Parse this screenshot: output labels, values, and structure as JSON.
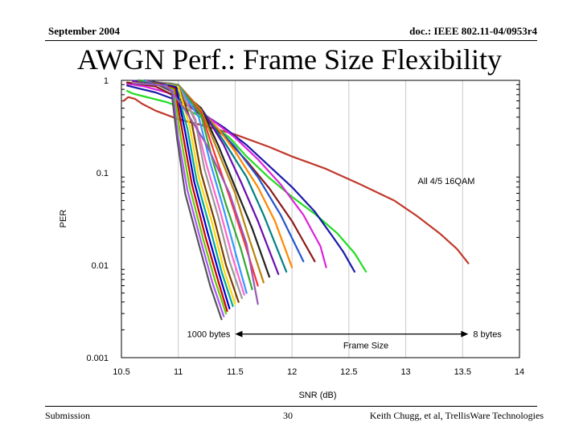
{
  "header": {
    "date": "September 2004",
    "doc_id": "doc.: IEEE 802.11-04/0953r4"
  },
  "slide_title": "AWGN Perf.: Frame Size Flexibility",
  "footer": {
    "left": "Submission",
    "page": "30",
    "right": "Keith Chugg, et al, TrellisWare Technologies"
  },
  "chart_data": {
    "type": "line",
    "title": "",
    "xlabel": "SNR (dB)",
    "ylabel": "PER",
    "xlim": [
      10.5,
      14
    ],
    "ylim": [
      0.001,
      1
    ],
    "y_scale": "log",
    "x_ticks": [
      "10.5",
      "11",
      "11.5",
      "12",
      "12.5",
      "13",
      "13.5",
      "14"
    ],
    "y_ticks": [
      "1",
      "0.1",
      "0.01",
      "0.001"
    ],
    "grid": "vertical",
    "annotations": {
      "code": "All 4/5 16QAM",
      "left_label": "1000 bytes",
      "right_label": "8 bytes",
      "arrow_label": "Frame Size",
      "arrow_from_x": 11.5,
      "arrow_to_x": 13.55,
      "arrow_y": 0.0018
    },
    "series": [
      {
        "color": "#c0392b",
        "x": [
          10.52,
          10.56,
          10.62,
          10.68,
          10.8,
          11.0,
          11.2,
          11.5,
          11.8,
          12.0,
          12.3,
          12.6,
          12.9,
          13.1,
          13.3,
          13.45,
          13.55
        ],
        "y": [
          0.6,
          0.66,
          0.63,
          0.56,
          0.47,
          0.38,
          0.33,
          0.26,
          0.19,
          0.15,
          0.11,
          0.075,
          0.05,
          0.034,
          0.022,
          0.015,
          0.0105
        ]
      },
      {
        "color": "#22dd22",
        "x": [
          10.55,
          10.6,
          10.7,
          10.9,
          11.1,
          11.2,
          11.3,
          11.45,
          11.6,
          11.8,
          12.0,
          12.2,
          12.4,
          12.55,
          12.65
        ],
        "y": [
          0.77,
          0.72,
          0.67,
          0.58,
          0.47,
          0.4,
          0.33,
          0.24,
          0.15,
          0.088,
          0.055,
          0.036,
          0.022,
          0.0135,
          0.0085
        ]
      },
      {
        "color": "#1a1aaa",
        "x": [
          10.55,
          10.65,
          10.8,
          11.0,
          11.2,
          11.4,
          11.6,
          11.8,
          12.0,
          12.2,
          12.35,
          12.45,
          12.55
        ],
        "y": [
          0.88,
          0.82,
          0.74,
          0.6,
          0.45,
          0.31,
          0.2,
          0.118,
          0.07,
          0.038,
          0.021,
          0.014,
          0.0085
        ]
      },
      {
        "color": "#dd22dd",
        "x": [
          10.55,
          10.7,
          10.9,
          11.1,
          11.3,
          11.5,
          11.7,
          11.9,
          12.1,
          12.25,
          12.3
        ],
        "y": [
          0.92,
          0.86,
          0.74,
          0.55,
          0.37,
          0.24,
          0.14,
          0.075,
          0.035,
          0.016,
          0.0095
        ]
      },
      {
        "color": "#8b1a1a",
        "x": [
          10.55,
          10.8,
          11.0,
          11.2,
          11.4,
          11.6,
          11.8,
          12.0,
          12.2
        ],
        "y": [
          0.95,
          0.86,
          0.65,
          0.42,
          0.25,
          0.135,
          0.068,
          0.03,
          0.011
        ]
      },
      {
        "color": "#2255cc",
        "x": [
          10.6,
          10.85,
          11.1,
          11.3,
          11.5,
          11.7,
          11.9,
          12.1
        ],
        "y": [
          0.98,
          0.88,
          0.6,
          0.35,
          0.19,
          0.09,
          0.035,
          0.011
        ]
      },
      {
        "color": "#ff8800",
        "x": [
          10.6,
          10.9,
          11.15,
          11.35,
          11.5,
          11.7,
          11.85,
          12.0
        ],
        "y": [
          0.98,
          0.9,
          0.55,
          0.3,
          0.17,
          0.07,
          0.03,
          0.0095
        ]
      },
      {
        "color": "#008080",
        "x": [
          10.6,
          10.9,
          11.2,
          11.4,
          11.6,
          11.75,
          11.95
        ],
        "y": [
          0.99,
          0.9,
          0.5,
          0.22,
          0.09,
          0.035,
          0.0085
        ]
      },
      {
        "color": "#6a0dad",
        "x": [
          10.6,
          10.95,
          11.2,
          11.4,
          11.55,
          11.7,
          11.88
        ],
        "y": [
          0.99,
          0.92,
          0.5,
          0.2,
          0.08,
          0.03,
          0.008
        ]
      },
      {
        "color": "#222222",
        "x": [
          10.65,
          10.95,
          11.2,
          11.35,
          11.5,
          11.65,
          11.8
        ],
        "y": [
          1.0,
          0.92,
          0.5,
          0.2,
          0.07,
          0.025,
          0.0075
        ]
      },
      {
        "color": "#b8860b",
        "x": [
          10.65,
          11.0,
          11.2,
          11.35,
          11.5,
          11.62,
          11.75
        ],
        "y": [
          1.0,
          0.9,
          0.48,
          0.17,
          0.06,
          0.02,
          0.0065
        ]
      },
      {
        "color": "#ff3333",
        "x": [
          10.65,
          11.0,
          11.2,
          11.32,
          11.45,
          11.58,
          11.7
        ],
        "y": [
          1.0,
          0.9,
          0.45,
          0.16,
          0.055,
          0.018,
          0.006
        ]
      },
      {
        "color": "#33aa33",
        "x": [
          10.65,
          11.0,
          11.2,
          11.3,
          11.42,
          11.55,
          11.65
        ],
        "y": [
          1.0,
          0.9,
          0.42,
          0.14,
          0.045,
          0.015,
          0.0055
        ]
      },
      {
        "color": "#3399ff",
        "x": [
          10.7,
          11.0,
          11.18,
          11.28,
          11.4,
          11.5,
          11.6
        ],
        "y": [
          1.0,
          0.88,
          0.4,
          0.13,
          0.04,
          0.014,
          0.005
        ]
      },
      {
        "color": "#ff66cc",
        "x": [
          10.7,
          11.0,
          11.15,
          11.25,
          11.37,
          11.47,
          11.58
        ],
        "y": [
          1.0,
          0.88,
          0.38,
          0.12,
          0.038,
          0.013,
          0.0048
        ]
      },
      {
        "color": "#999999",
        "x": [
          10.7,
          11.0,
          11.15,
          11.23,
          11.35,
          11.45,
          11.56
        ],
        "y": [
          1.0,
          0.88,
          0.36,
          0.11,
          0.034,
          0.011,
          0.0044
        ]
      },
      {
        "color": "#7b3f00",
        "x": [
          10.7,
          11.0,
          11.12,
          11.2,
          11.32,
          11.42,
          11.53
        ],
        "y": [
          1.0,
          0.86,
          0.34,
          0.1,
          0.03,
          0.01,
          0.004
        ]
      },
      {
        "color": "#ffd700",
        "x": [
          10.7,
          11.0,
          11.1,
          11.18,
          11.3,
          11.4,
          11.5
        ],
        "y": [
          1.0,
          0.85,
          0.32,
          0.09,
          0.028,
          0.009,
          0.0038
        ]
      },
      {
        "color": "#00aa99",
        "x": [
          10.7,
          10.98,
          11.08,
          11.16,
          11.28,
          11.38,
          11.48
        ],
        "y": [
          1.0,
          0.85,
          0.3,
          0.085,
          0.025,
          0.0085,
          0.0036
        ]
      },
      {
        "color": "#0000cc",
        "x": [
          10.72,
          10.98,
          11.06,
          11.14,
          11.26,
          11.36,
          11.45
        ],
        "y": [
          1.0,
          0.84,
          0.28,
          0.08,
          0.022,
          0.008,
          0.0034
        ]
      },
      {
        "color": "#cc0000",
        "x": [
          10.72,
          10.97,
          11.04,
          11.12,
          11.24,
          11.34,
          11.43
        ],
        "y": [
          1.0,
          0.82,
          0.26,
          0.075,
          0.02,
          0.0075,
          0.0032
        ]
      },
      {
        "color": "#66cc00",
        "x": [
          10.72,
          10.96,
          11.02,
          11.1,
          11.22,
          11.32,
          11.42
        ],
        "y": [
          1.0,
          0.8,
          0.25,
          0.07,
          0.019,
          0.007,
          0.003
        ]
      },
      {
        "color": "#aa55ff",
        "x": [
          10.72,
          10.95,
          11.0,
          11.08,
          11.2,
          11.3,
          11.4
        ],
        "y": [
          1.0,
          0.78,
          0.24,
          0.065,
          0.018,
          0.0065,
          0.0028
        ]
      },
      {
        "color": "#555555",
        "x": [
          10.74,
          10.94,
          10.99,
          11.06,
          11.18,
          11.28,
          11.38
        ],
        "y": [
          1.0,
          0.76,
          0.23,
          0.06,
          0.017,
          0.006,
          0.0026
        ]
      },
      {
        "color": "#9b59b6",
        "x": [
          10.6,
          10.9,
          11.05,
          11.25,
          11.45,
          11.6,
          11.7
        ],
        "y": [
          0.93,
          0.88,
          0.5,
          0.2,
          0.06,
          0.017,
          0.0038
        ]
      }
    ]
  }
}
